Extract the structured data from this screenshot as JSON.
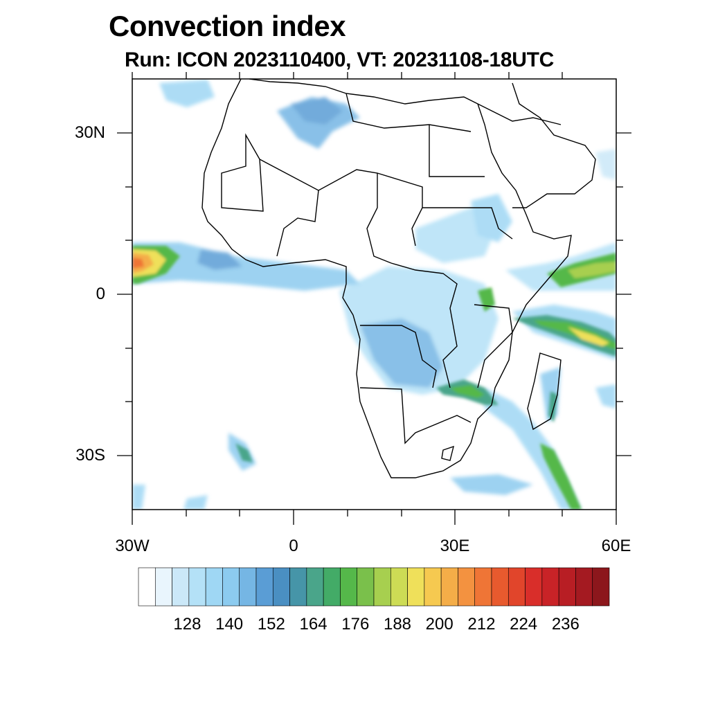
{
  "header": {
    "title": "Convection index",
    "subtitle": "Run: ICON 2023110400,  VT: 20231108-18UTC"
  },
  "map": {
    "region": "Africa",
    "lat_labels": [
      "30N",
      "0",
      "30S"
    ],
    "lon_labels": [
      "30W",
      "0",
      "30E",
      "60E"
    ],
    "extent": {
      "lon": [
        -30,
        60
      ],
      "lat": [
        -40,
        40
      ]
    },
    "features": [
      {
        "name": "west-atlantic-itcz-band",
        "intensity": 200
      },
      {
        "name": "congo-basin-convection",
        "intensity": 152
      },
      {
        "name": "east-african-band",
        "intensity": 176
      },
      {
        "name": "indian-ocean-band-south",
        "intensity": 185
      },
      {
        "name": "indian-ocean-band-north",
        "intensity": 180
      },
      {
        "name": "southeast-africa-band",
        "intensity": 176
      },
      {
        "name": "north-africa-algeria",
        "intensity": 150
      }
    ]
  },
  "colorbar": {
    "labels": [
      "128",
      "140",
      "152",
      "164",
      "176",
      "188",
      "200",
      "212",
      "224",
      "236"
    ],
    "colors": [
      "#ffffff",
      "#e9f5fd",
      "#cbe8f8",
      "#b4e1f7",
      "#9fd7f4",
      "#8ccbef",
      "#75b6e4",
      "#5a9dd5",
      "#4a8fc2",
      "#4695a8",
      "#4aa58a",
      "#43ab67",
      "#55b84a",
      "#7ac04b",
      "#a7cf4f",
      "#cddc55",
      "#efe05a",
      "#f6c950",
      "#f4ad48",
      "#f39240",
      "#ef7536",
      "#e85a2e",
      "#e1452b",
      "#d92e2a",
      "#c92327",
      "#b81e24",
      "#a41a21",
      "#8c171c"
    ]
  }
}
